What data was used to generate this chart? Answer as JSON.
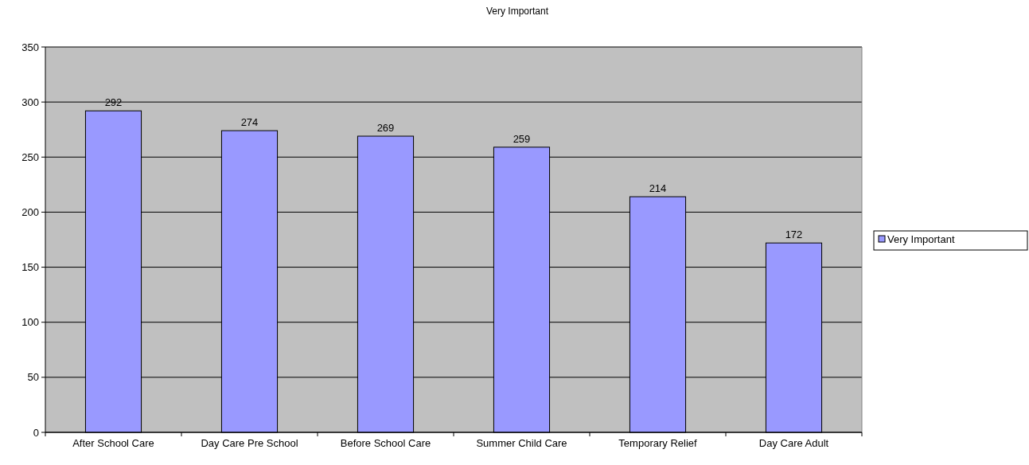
{
  "chart_data": {
    "type": "bar",
    "title": "Very Important",
    "categories": [
      "After School Care",
      "Day Care Pre School",
      "Before School Care",
      "Summer Child Care",
      "Temporary Relief",
      "Day Care Adult"
    ],
    "series": [
      {
        "name": "Very Important",
        "color": "#9999ff",
        "values": [
          292,
          274,
          269,
          259,
          214,
          172
        ]
      }
    ],
    "ylim": [
      0,
      350
    ],
    "yticks": [
      0,
      50,
      100,
      150,
      200,
      250,
      300,
      350
    ],
    "grid": "y",
    "legend": "right",
    "data_labels": true
  }
}
